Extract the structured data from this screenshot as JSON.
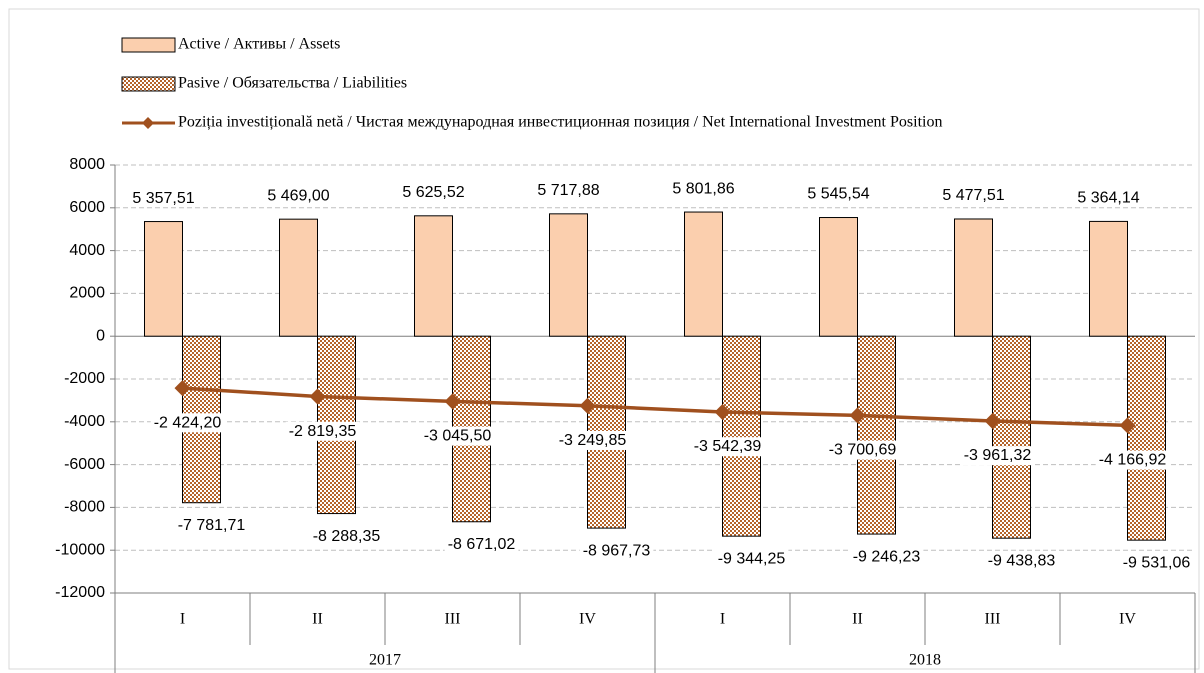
{
  "chart_data": {
    "type": "bar-line",
    "categories": [
      "I",
      "II",
      "III",
      "IV",
      "I",
      "II",
      "III",
      "IV"
    ],
    "category_groups": [
      "2017",
      "2018"
    ],
    "series": [
      {
        "name": "Active / Активы / Assets",
        "type": "bar",
        "color": "#fbcfae",
        "values": [
          5357.51,
          5469.0,
          5625.52,
          5717.88,
          5801.86,
          5545.54,
          5477.51,
          5364.14
        ],
        "value_labels": [
          "5 357,51",
          "5 469,00",
          "5 625,52",
          "5 717,88",
          "5 801,86",
          "5 545,54",
          "5 477,51",
          "5 364,14"
        ]
      },
      {
        "name": "Pasive / Обязательства / Liabilities",
        "type": "bar",
        "color": "#b5642a",
        "values": [
          -7781.71,
          -8288.35,
          -8671.02,
          -8967.73,
          -9344.25,
          -9246.23,
          -9438.83,
          -9531.06
        ],
        "value_labels": [
          "-7 781,71",
          "-8 288,35",
          "-8 671,02",
          "-8 967,73",
          "-9 344,25",
          "-9 246,23",
          "-9 438,83",
          "-9 531,06"
        ]
      },
      {
        "name": "Poziția investițională netă / Чистая международная инвестиционная позиция / Net International Investment Position",
        "type": "line",
        "color": "#a0501e",
        "values": [
          -2424.2,
          -2819.35,
          -3045.5,
          -3249.85,
          -3542.39,
          -3700.69,
          -3961.32,
          -4166.92
        ],
        "value_labels": [
          "-2 424,20",
          "-2 819,35",
          "-3 045,50",
          "-3 249,85",
          "-3 542,39",
          "-3 700,69",
          "-3 961,32",
          "-4 166,92"
        ]
      }
    ],
    "ylim": [
      -12000,
      8000
    ],
    "yticks": [
      -12000,
      -10000,
      -8000,
      -6000,
      -4000,
      -2000,
      0,
      2000,
      4000,
      6000,
      8000
    ],
    "grid": true,
    "legend": "top"
  }
}
